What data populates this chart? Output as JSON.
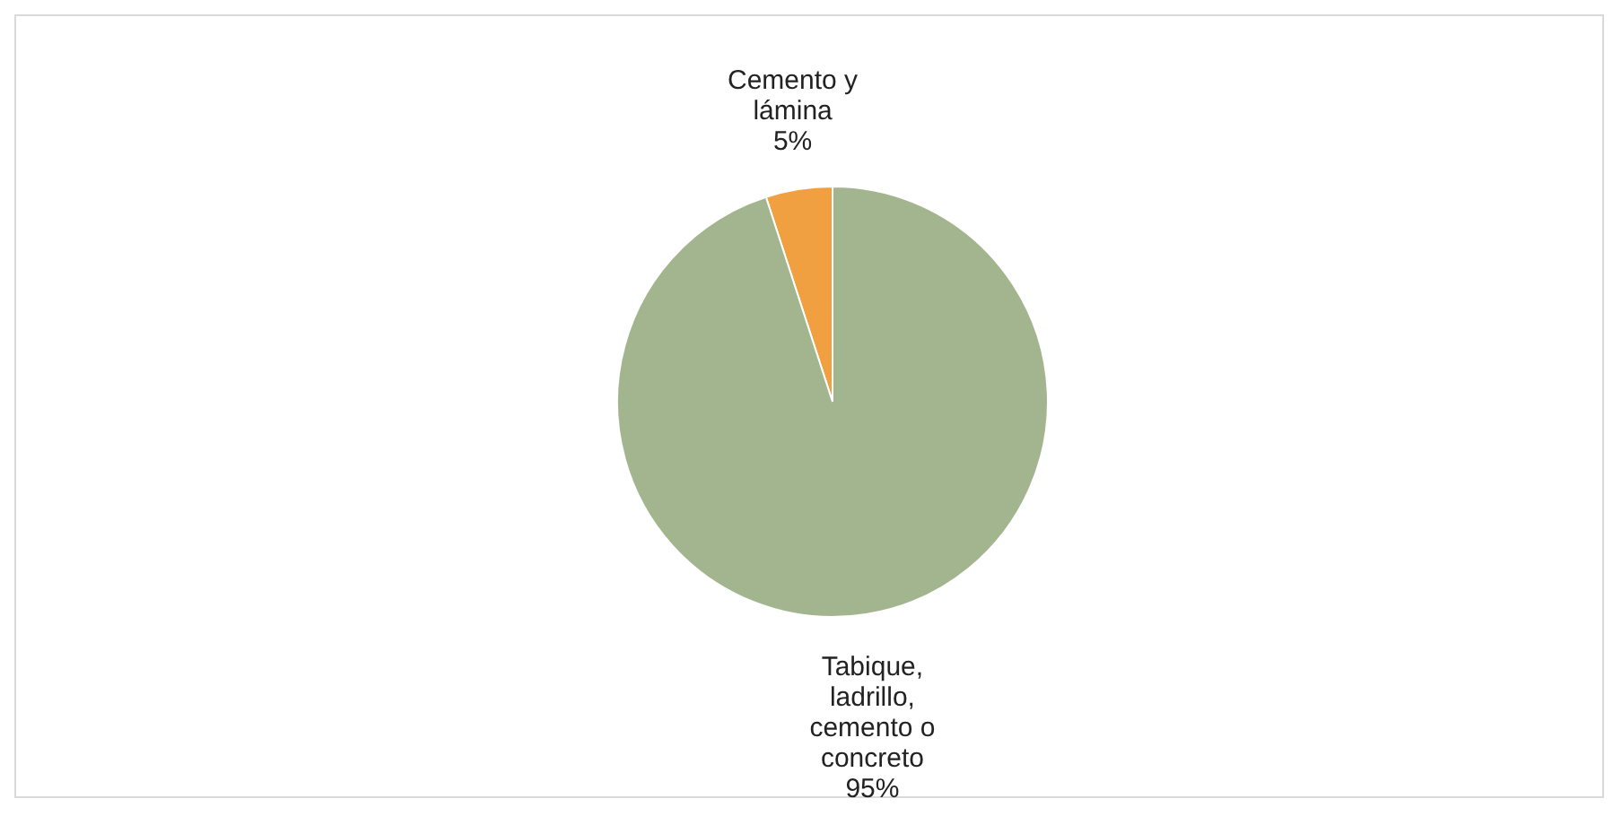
{
  "chart_data": {
    "type": "pie",
    "categories": [
      "Cemento y lámina",
      "Tabique, ladrillo, cemento o concreto"
    ],
    "values": [
      5,
      95
    ],
    "colors": [
      "#f0a040",
      "#a3b58e"
    ],
    "value_labels": [
      "5%",
      "95%"
    ],
    "legend": false
  }
}
